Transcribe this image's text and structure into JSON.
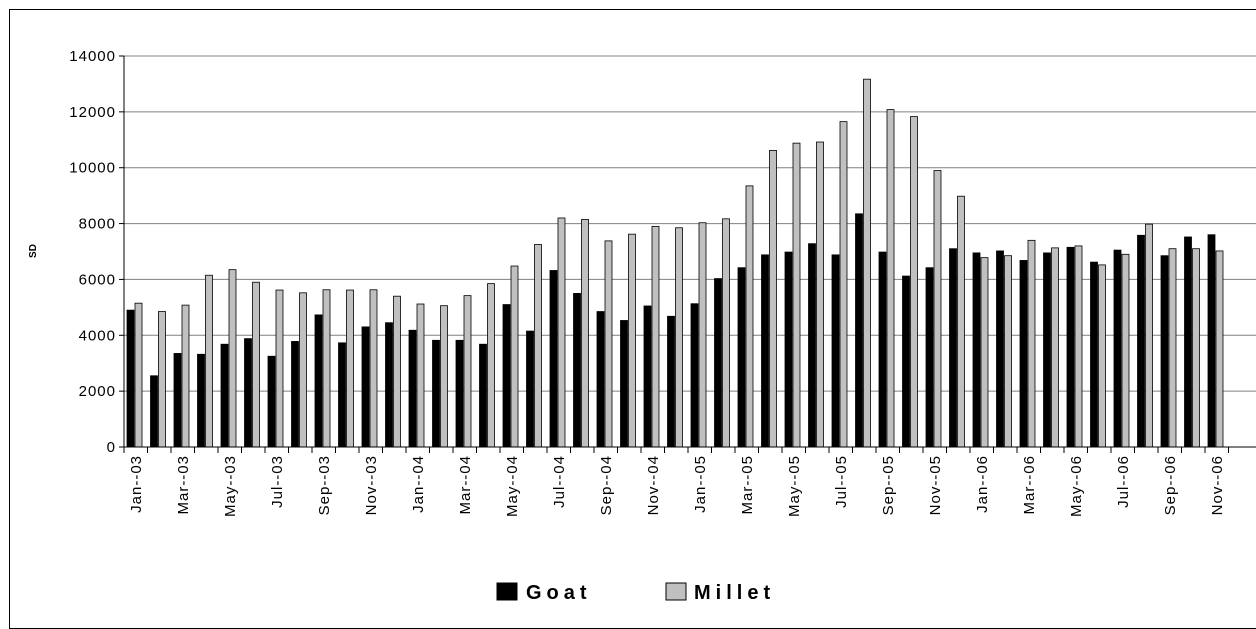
{
  "chart_data": {
    "type": "bar",
    "title": "",
    "xlabel": "",
    "ylabel": "SD",
    "ylim": [
      0,
      14000
    ],
    "yticks": [
      0,
      2000,
      4000,
      6000,
      8000,
      10000,
      12000,
      14000
    ],
    "grid": "horizontal",
    "legend_position": "bottom",
    "months": [
      "Jan--03",
      "Feb--03",
      "Mar--03",
      "Apr--03",
      "May--03",
      "Jun--03",
      "Jul--03",
      "Aug--03",
      "Sep--03",
      "Oct--03",
      "Nov--03",
      "Dec--03",
      "Jan--04",
      "Feb--04",
      "Mar--04",
      "Apr--04",
      "May--04",
      "Jun--04",
      "Jul--04",
      "Aug--04",
      "Sep--04",
      "Oct--04",
      "Nov--04",
      "Dec--04",
      "Jan--05",
      "Feb--05",
      "Mar--05",
      "Apr--05",
      "May--05",
      "Jun--05",
      "Jul--05",
      "Aug--05",
      "Sep--05",
      "Oct--05",
      "Nov--05",
      "Dec--05",
      "Jan--06",
      "Feb--06",
      "Mar--06",
      "Apr--06",
      "May--06",
      "Jun--06",
      "Jul--06",
      "Aug--06",
      "Sep--06",
      "Oct--06",
      "Nov--06"
    ],
    "tick_labels": [
      "Jan--03",
      "Mar--03",
      "May--03",
      "Jul--03",
      "Sep--03",
      "Nov--03",
      "Jan--04",
      "Mar--04",
      "May--04",
      "Jul--04",
      "Sep--04",
      "Nov--04",
      "Jan--05",
      "Mar--05",
      "May--05",
      "Jul--05",
      "Sep--05",
      "Nov--05",
      "Jan--06",
      "Mar--06",
      "May--06",
      "Jul--06",
      "Sep--06",
      "Nov--06"
    ],
    "series": [
      {
        "name": "Goat",
        "color": "#000000",
        "values": [
          4900,
          2550,
          3350,
          3320,
          3680,
          3880,
          3250,
          3780,
          4730,
          3730,
          4300,
          4450,
          4180,
          3820,
          3820,
          3680,
          5100,
          4150,
          6320,
          5500,
          4850,
          4530,
          5050,
          4680,
          5130,
          6030,
          6420,
          6880,
          6980,
          7280,
          6880,
          8350,
          6980,
          6120,
          6420,
          7100,
          6950,
          7020,
          6680,
          6950,
          7150,
          6620,
          7050,
          7580,
          6850,
          7520,
          7600
        ]
      },
      {
        "name": "Millet",
        "color": "#c0c0c0",
        "values": [
          5150,
          4850,
          5080,
          6150,
          6350,
          5900,
          5620,
          5520,
          5630,
          5620,
          5630,
          5400,
          5120,
          5060,
          5420,
          5850,
          6480,
          7250,
          8200,
          8150,
          7380,
          7620,
          7900,
          7850,
          8030,
          8170,
          9350,
          10620,
          10880,
          10920,
          11650,
          13170,
          12080,
          11830,
          9900,
          8980,
          6780,
          6850,
          7400,
          7130,
          7200,
          6520,
          6900,
          7980,
          7100,
          7100,
          7020
        ]
      }
    ]
  }
}
